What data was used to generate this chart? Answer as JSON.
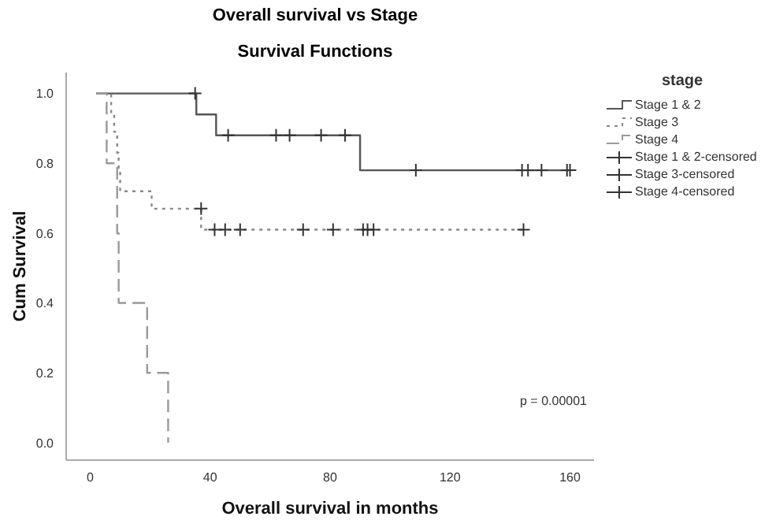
{
  "chart_data": {
    "type": "step",
    "title": "Overall survival vs Stage",
    "subtitle": "Survival Functions",
    "xlabel": "Overall survival in months",
    "ylabel": "Cum Survival",
    "legend_title": "stage",
    "legend": "right",
    "grid": false,
    "xlim": [
      -8,
      168
    ],
    "xticks": [
      0,
      40,
      80,
      120,
      160
    ],
    "ylim": [
      -0.05,
      1.06
    ],
    "yticks": [
      {
        "value": 0,
        "label": "0.0"
      },
      {
        "value": 0.2,
        "label": "0.2"
      },
      {
        "value": 0.4,
        "label": "0.4"
      },
      {
        "value": 0.6,
        "label": "0.6"
      },
      {
        "value": 0.8,
        "label": "0.8"
      },
      {
        "value": 1,
        "label": "1.0"
      }
    ],
    "annotations": [
      "p = 0.00001"
    ],
    "series": [
      {
        "name": "Stage 1 & 2",
        "line_style": "solid",
        "color": "#555555",
        "x": [
          2,
          35.4,
          42,
          90,
          160
        ],
        "values": [
          1,
          0.94,
          0.88,
          0.78,
          0.78
        ]
      },
      {
        "name": "Stage 3",
        "line_style": "dotted",
        "color": "#888888",
        "x": [
          2,
          7,
          8,
          9,
          9.5,
          10,
          20.5,
          37,
          144.5
        ],
        "values": [
          1,
          0.94,
          0.89,
          0.83,
          0.78,
          0.72,
          0.67,
          0.61,
          0.61
        ]
      },
      {
        "name": "Stage 4",
        "line_style": "dashed",
        "color": "#999999",
        "x": [
          2,
          5.5,
          9,
          9.5,
          19,
          26
        ],
        "values": [
          1,
          0.8,
          0.6,
          0.4,
          0.2,
          0
        ]
      },
      {
        "name": "Stage 1 & 2-censored",
        "type": "scatter",
        "marker": "cross",
        "color": "#333333",
        "x": [
          35,
          46,
          62,
          66.5,
          77,
          85,
          108.6,
          144,
          146,
          150.5,
          159,
          160
        ],
        "values": [
          1,
          0.88,
          0.88,
          0.88,
          0.88,
          0.88,
          0.78,
          0.78,
          0.78,
          0.78,
          0.78,
          0.78
        ]
      },
      {
        "name": "Stage 3-censored",
        "type": "scatter",
        "marker": "cross",
        "color": "#333333",
        "x": [
          37,
          41.5,
          45,
          50,
          71,
          81,
          91,
          92.5,
          94.5,
          144.5
        ],
        "values": [
          0.67,
          0.61,
          0.61,
          0.61,
          0.61,
          0.61,
          0.61,
          0.61,
          0.61,
          0.61
        ]
      },
      {
        "name": "Stage 4-censored",
        "type": "scatter",
        "marker": "cross",
        "color": "#333333"
      }
    ]
  }
}
